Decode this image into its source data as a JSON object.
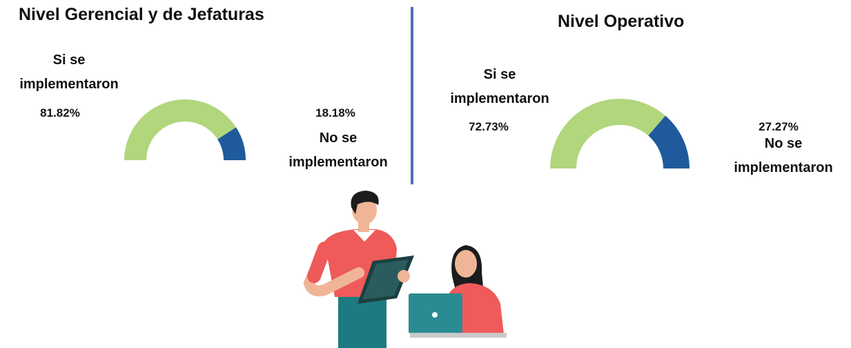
{
  "chart_data": [
    {
      "type": "half-donut",
      "title": "Nivel Gerencial y de Jefaturas",
      "categories": [
        "Si se implementaron",
        "No se implementaron"
      ],
      "values": [
        81.82,
        18.18
      ],
      "value_labels": [
        "81.82%",
        "18.18%"
      ],
      "colors": [
        "#b1d67c",
        "#1f5a9c"
      ]
    },
    {
      "type": "half-donut",
      "title": "Nivel Operativo",
      "categories": [
        "Si se implementaron",
        "No se implementaron"
      ],
      "values": [
        72.73,
        27.27
      ],
      "value_labels": [
        "72.73%",
        "27.27%"
      ],
      "colors": [
        "#b1d67c",
        "#1f5a9c"
      ]
    }
  ]
}
